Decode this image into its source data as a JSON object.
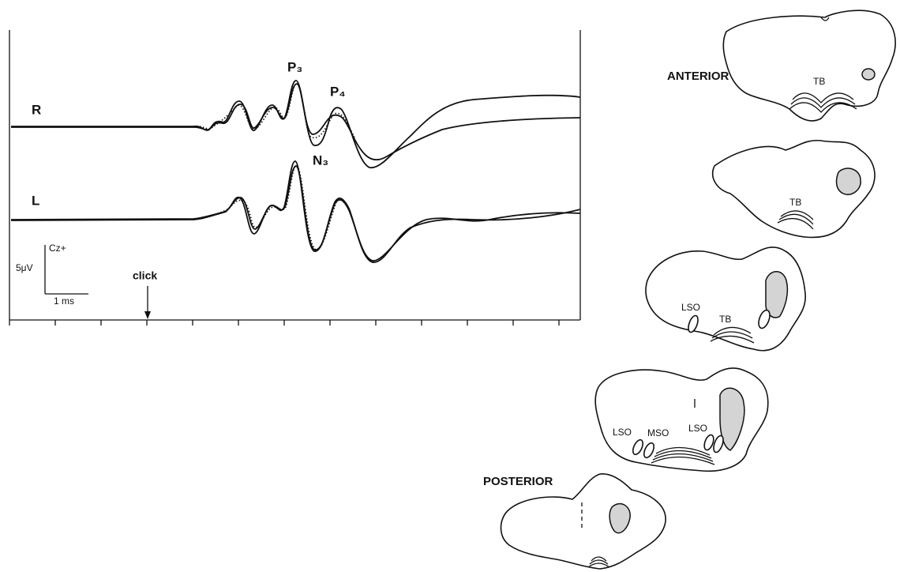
{
  "traces": {
    "right": "R",
    "left": "L"
  },
  "peaks": {
    "p3": "P₃",
    "p4": "P₄",
    "n3": "N₃"
  },
  "calibration": {
    "polarity": "Cz+",
    "voltage": "5μV",
    "time": "1 ms"
  },
  "stimulus": "click",
  "sections": {
    "anterior": "ANTERIOR",
    "posterior": "POSTERIOR",
    "labels": [
      "TB",
      "TB",
      "LSO",
      "TB",
      "LSO",
      "MSO",
      "LSO"
    ]
  }
}
